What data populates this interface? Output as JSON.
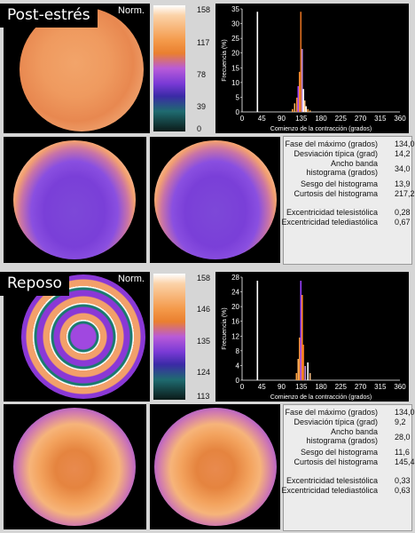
{
  "sections": [
    {
      "label": "Post-estrés",
      "norm_label": "Norm.",
      "colorbar_ticks": [
        "158",
        "117",
        "78",
        "39",
        "0"
      ],
      "histogram": {
        "ylabel": "Frecuencia (%)",
        "xlabel": "Comienzo de la contracción (grados)",
        "y_ticks": [
          "35",
          "30",
          "25",
          "20",
          "15",
          "10",
          "5",
          "0"
        ],
        "x_ticks": [
          "0",
          "45",
          "90",
          "135",
          "180",
          "225",
          "270",
          "315",
          "360"
        ]
      },
      "chart_data": {
        "type": "bar",
        "x": [
          35,
          115,
          120,
          125,
          128,
          131,
          134,
          137,
          140,
          143,
          146,
          150,
          155
        ],
        "values": [
          35,
          1,
          3,
          5,
          9,
          14,
          35,
          22,
          8,
          4,
          2,
          1,
          0.5
        ],
        "xlim": [
          0,
          360
        ],
        "ylim": [
          0,
          36
        ]
      },
      "stats": [
        {
          "label": "Fase del máximo (grados)",
          "value": "134,0"
        },
        {
          "label": "Desviación típica (grad)",
          "value": "14,2"
        },
        {
          "label": "Ancho banda histograma (grados)",
          "value": "34,0"
        },
        {
          "label": "Sesgo del histograma",
          "value": "13,9"
        },
        {
          "label": "Curtosis del histograma",
          "value": "217,2"
        },
        {
          "label": "Excentricidad telesistólica",
          "value": "0,28"
        },
        {
          "label": "Excentricidad telediastólica",
          "value": "0,67"
        }
      ]
    },
    {
      "label": "Reposo",
      "norm_label": "Norm.",
      "colorbar_ticks": [
        "158",
        "146",
        "135",
        "124",
        "113"
      ],
      "histogram": {
        "ylabel": "Frecuencia (%)",
        "xlabel": "Comienzo de la contracción (grados)",
        "y_ticks": [
          "28",
          "24",
          "20",
          "16",
          "12",
          "8",
          "4",
          "0"
        ],
        "x_ticks": [
          "0",
          "45",
          "90",
          "135",
          "180",
          "225",
          "270",
          "315",
          "360"
        ]
      },
      "chart_data": {
        "type": "bar",
        "x": [
          35,
          124,
          128,
          131,
          134,
          137,
          140,
          144,
          150,
          155
        ],
        "values": [
          28,
          2,
          6,
          12,
          28,
          24,
          10,
          4,
          5,
          2
        ],
        "xlim": [
          0,
          360
        ],
        "ylim": [
          0,
          29
        ]
      },
      "stats": [
        {
          "label": "Fase del máximo (grados)",
          "value": "134,0"
        },
        {
          "label": "Desviación típica (grad)",
          "value": "9,2"
        },
        {
          "label": "Ancho banda histograma (grados)",
          "value": "28,0"
        },
        {
          "label": "Sesgo del histograma",
          "value": "11,6"
        },
        {
          "label": "Curtosis del histograma",
          "value": "145,4"
        },
        {
          "label": "Excentricidad telesistólica",
          "value": "0,33"
        },
        {
          "label": "Excentricidad telediastólica",
          "value": "0,63"
        }
      ]
    }
  ]
}
